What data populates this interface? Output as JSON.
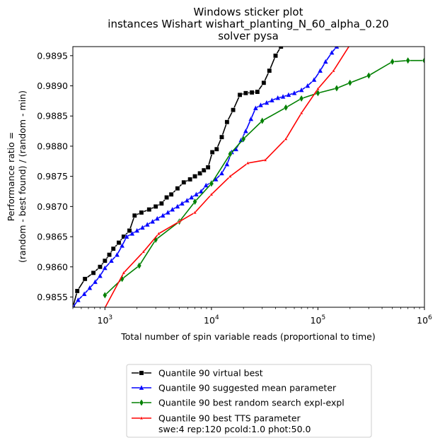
{
  "chart_data": {
    "type": "line",
    "title": [
      "Windows sticker plot",
      "instances Wishart wishart_planting_N_60_alpha_0.20",
      "solver pysa"
    ],
    "xlabel": "Total number of spin variable reads (proportional to time)",
    "ylabel": [
      "Performance ratio =",
      "(random - best found) / (random - min)"
    ],
    "xscale": "log",
    "xlim": [
      500,
      1000000
    ],
    "ylim": [
      0.98533,
      0.98965
    ],
    "x_ticks": [
      {
        "value": 1000,
        "base": "10",
        "exp": "3"
      },
      {
        "value": 10000,
        "base": "10",
        "exp": "4"
      },
      {
        "value": 100000,
        "base": "10",
        "exp": "5"
      },
      {
        "value": 1000000,
        "base": "10",
        "exp": "6"
      }
    ],
    "y_ticks": [
      0.9855,
      0.986,
      0.9865,
      0.987,
      0.9875,
      0.988,
      0.9885,
      0.989,
      0.9895
    ],
    "y_tick_labels": [
      "0.9855",
      "0.9860",
      "0.9865",
      "0.9870",
      "0.9875",
      "0.9880",
      "0.9885",
      "0.9890",
      "0.9895"
    ],
    "legend_position": "below plot",
    "series": [
      {
        "name": "Quantile 90 virtual best",
        "color": "#000000",
        "marker": "square",
        "x": [
          500,
          550,
          650,
          780,
          900,
          1000,
          1100,
          1200,
          1350,
          1500,
          1700,
          1900,
          2200,
          2600,
          3000,
          3400,
          3800,
          4200,
          4800,
          5500,
          6300,
          7000,
          7800,
          8500,
          9300,
          10200,
          11200,
          12500,
          14000,
          16000,
          18500,
          21000,
          24000,
          27000,
          31000,
          35000,
          40000,
          45000,
          50000,
          56000
        ],
        "y": [
          0.98533,
          0.9856,
          0.9858,
          0.9859,
          0.986,
          0.9861,
          0.9862,
          0.9863,
          0.9864,
          0.9865,
          0.9866,
          0.98685,
          0.9869,
          0.98695,
          0.987,
          0.98705,
          0.98715,
          0.9872,
          0.9873,
          0.9874,
          0.98745,
          0.9875,
          0.98755,
          0.9876,
          0.98765,
          0.9879,
          0.98795,
          0.98815,
          0.9884,
          0.9886,
          0.98885,
          0.98888,
          0.98889,
          0.9889,
          0.98905,
          0.98925,
          0.9895,
          0.98965,
          0.98975,
          0.98985
        ]
      },
      {
        "name": "Quantile 90 suggested mean parameter",
        "color": "#0000ff",
        "marker": "triangle",
        "x": [
          500,
          560,
          640,
          720,
          810,
          900,
          1000,
          1150,
          1300,
          1450,
          1600,
          1800,
          2000,
          2250,
          2500,
          2800,
          3100,
          3500,
          3900,
          4300,
          4800,
          5300,
          5900,
          6500,
          7200,
          8000,
          8900,
          10000,
          11000,
          12500,
          14000,
          15500,
          17000,
          19000,
          21000,
          23500,
          26000,
          29000,
          33000,
          37000,
          42000,
          47000,
          53000,
          60000,
          70000,
          80000,
          92000,
          105000,
          118000,
          135000,
          150000,
          165000
        ],
        "y": [
          0.98533,
          0.98545,
          0.98555,
          0.98565,
          0.98575,
          0.98585,
          0.98598,
          0.9861,
          0.9862,
          0.98635,
          0.9865,
          0.98655,
          0.9866,
          0.98665,
          0.9867,
          0.98675,
          0.9868,
          0.98685,
          0.9869,
          0.98695,
          0.987,
          0.98705,
          0.9871,
          0.98715,
          0.9872,
          0.98725,
          0.98735,
          0.9874,
          0.98745,
          0.98755,
          0.9877,
          0.9879,
          0.98795,
          0.9881,
          0.98825,
          0.98845,
          0.98863,
          0.98868,
          0.98872,
          0.98876,
          0.9888,
          0.98882,
          0.98885,
          0.98888,
          0.98893,
          0.989,
          0.9891,
          0.98925,
          0.9894,
          0.98955,
          0.98965,
          0.98975
        ]
      },
      {
        "name": "Quantile 90  best random search expl-expl",
        "color": "#008000",
        "marker": "diamond",
        "x": [
          1000,
          1450,
          2100,
          3000,
          5000,
          7000,
          10000,
          15000,
          20000,
          30000,
          50000,
          70000,
          100000,
          150000,
          200000,
          300000,
          500000,
          700000,
          1000000
        ],
        "y": [
          0.98553,
          0.9858,
          0.98602,
          0.98645,
          0.98675,
          0.98708,
          0.98738,
          0.98787,
          0.98812,
          0.98842,
          0.98864,
          0.98879,
          0.98888,
          0.98896,
          0.98905,
          0.98917,
          0.9894,
          0.98942,
          0.98942
        ]
      },
      {
        "name": "Quantile 90 best TTS parameter",
        "name_line2": "swe:4 rep:120 pcold:1.0 phot:50.0",
        "color": "#ff0000",
        "marker": "small-triangle",
        "x": [
          1000,
          1500,
          2300,
          3200,
          5000,
          7000,
          10000,
          15000,
          22000,
          32000,
          50000,
          70000,
          100000,
          140000,
          200000
        ],
        "y": [
          0.98532,
          0.9859,
          0.98625,
          0.98655,
          0.98675,
          0.9869,
          0.9872,
          0.9875,
          0.98772,
          0.98777,
          0.98812,
          0.98855,
          0.98895,
          0.98925,
          0.98968
        ]
      }
    ]
  }
}
